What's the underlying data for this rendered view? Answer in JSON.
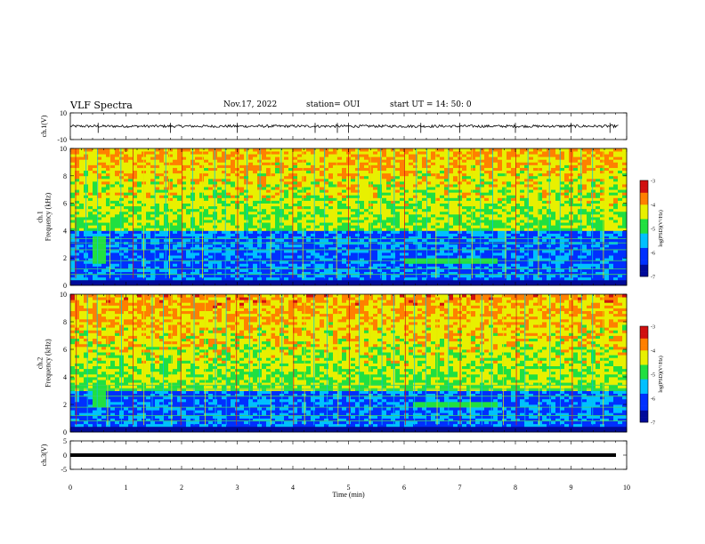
{
  "header": {
    "title": "VLF Spectra",
    "date": "Nov.17, 2022",
    "station": "station= OUI",
    "start": "start  UT =   14: 50: 0"
  },
  "chart_data": [
    {
      "type": "line",
      "panel": "waveform-ch1",
      "ylabel": "ch.1(V)",
      "ylim": [
        -10,
        10
      ],
      "yticks": [
        "10",
        "-10"
      ],
      "xlim": [
        0,
        10
      ],
      "series": [
        {
          "values_description_free": true,
          "baseline": 0,
          "amplitude_range": [
            -1,
            1
          ],
          "spikes_at_min": [
            0.5,
            1.8,
            3.0,
            4.4,
            4.8,
            5.0,
            6.3,
            7.0,
            8.0,
            9.0,
            9.7
          ]
        }
      ]
    },
    {
      "type": "heatmap",
      "panel": "spectrogram-ch1",
      "ylabel": "ch.1\nFrequency (kHz)",
      "ylim": [
        0,
        10
      ],
      "yticks": [
        "0",
        "2",
        "4",
        "6",
        "8",
        "10"
      ],
      "xlim": [
        0,
        10
      ],
      "colorbar": {
        "label": "log(PSD)(V²/Hz)",
        "range": [
          -7,
          -3
        ],
        "ticks": [
          "-3",
          "-4",
          "-5",
          "-6",
          "-7"
        ]
      },
      "features": {
        "noise_floor_top_khz": 4.0,
        "tone_band": {
          "freq_khz": 1.8,
          "t_start_min": 6.0,
          "t_end_min": 7.7
        },
        "burst": {
          "freq_khz": [
            1.6,
            3.5
          ],
          "t_min": 0.5
        },
        "sferic_times_min": [
          0.1,
          0.3,
          0.5,
          0.7,
          0.9,
          1.1,
          1.3,
          1.5,
          1.7,
          1.8,
          2.0,
          2.2,
          2.4,
          2.6,
          2.8,
          3.0,
          3.2,
          3.4,
          3.6,
          3.8,
          4.0,
          4.2,
          4.4,
          4.6,
          4.8,
          5.0,
          5.2,
          5.4,
          5.6,
          5.8,
          6.0,
          6.2,
          6.4,
          6.6,
          6.8,
          7.0,
          7.2,
          7.4,
          7.6,
          7.8,
          8.0,
          8.2,
          8.4,
          8.6,
          8.8,
          9.0,
          9.2,
          9.4,
          9.6
        ]
      }
    },
    {
      "type": "heatmap",
      "panel": "spectrogram-ch2",
      "ylabel": "ch.2\nFrequency (kHz)",
      "ylim": [
        0,
        10
      ],
      "yticks": [
        "0",
        "2",
        "4",
        "6",
        "8",
        "10"
      ],
      "xlim": [
        0,
        10
      ],
      "colorbar": {
        "label": "log(PSD)(V²/Hz)",
        "range": [
          -7,
          -3
        ],
        "ticks": [
          "-3",
          "-4",
          "-5",
          "-6",
          "-7"
        ]
      },
      "features": {
        "noise_floor_top_khz": 3.0,
        "tone_band": {
          "freq_khz": 2.0,
          "t_start_min": 6.2,
          "t_end_min": 7.7
        },
        "burst": {
          "freq_khz": [
            1.8,
            3.5
          ],
          "t_min": 0.5
        }
      }
    },
    {
      "type": "line",
      "panel": "waveform-ch3",
      "ylabel": "ch.3(V)",
      "ylim": [
        -5,
        5
      ],
      "yticks": [
        "5",
        "0",
        "-5"
      ],
      "xlim": [
        0,
        10
      ],
      "xlabel": "Time  (min)",
      "xticks": [
        "0",
        "1",
        "2",
        "3",
        "4",
        "5",
        "6",
        "7",
        "8",
        "9",
        "10"
      ],
      "series": [
        {
          "constant": 0
        }
      ]
    }
  ],
  "colors": {
    "black": "#000000",
    "blue": "#0010c8",
    "cyan": "#00c8e8",
    "green": "#20e020",
    "yellow": "#e8e800",
    "red": "#d81818"
  }
}
